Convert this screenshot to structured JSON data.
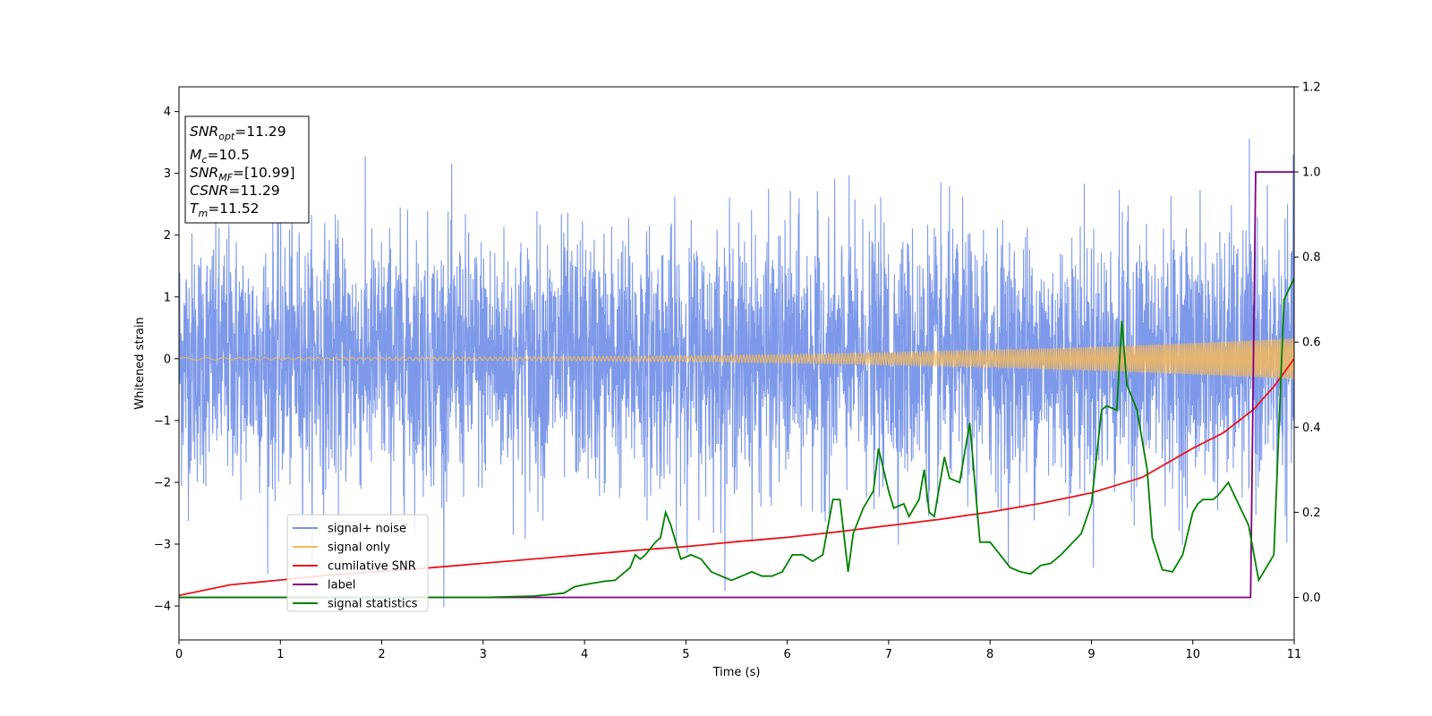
{
  "chart_data": {
    "type": "line",
    "title": "",
    "xlabel": "Time (s)",
    "ylabel": "Whitened strain",
    "xlim": [
      0,
      11
    ],
    "ylim": [
      -4.55,
      4.4
    ],
    "y2lim": [
      -0.1,
      1.2
    ],
    "xticks": [
      "0",
      "1",
      "2",
      "3",
      "4",
      "5",
      "6",
      "7",
      "8",
      "9",
      "10",
      "11"
    ],
    "yticks": [
      "4",
      "3",
      "2",
      "1",
      "0",
      "−1",
      "−2",
      "−3",
      "−4"
    ],
    "y2ticks": [
      "1.2",
      "1.0",
      "0.8",
      "0.6",
      "0.4",
      "0.2",
      "0.0"
    ],
    "grid": false,
    "legend_position": "lower-left",
    "annotation": {
      "snr_opt": {
        "base": "SNR",
        "sub": "opt",
        "value": "=11.29"
      },
      "mc": {
        "base": "M",
        "sub": "c",
        "value": "=10.5"
      },
      "snr_mf": {
        "base": "SNR",
        "sub": "MF",
        "value": "=[10.99]"
      },
      "csnr": {
        "base": "CSNR",
        "sub": "",
        "value": "=11.29"
      },
      "tm": {
        "base": "T",
        "sub": "m",
        "value": "=11.52"
      }
    },
    "series": [
      {
        "name": "signal+ noise",
        "color": "#7794e8",
        "axis": "left",
        "kind": "noise",
        "sample_rate_hz": 400,
        "std": 1.0,
        "min": -4.15,
        "max": 4.0
      },
      {
        "name": "signal only",
        "color": "#f5b95c",
        "axis": "left",
        "kind": "chirp",
        "amplitude_start": 0.02,
        "amplitude_end": 0.33,
        "frequency_start_hz": 4,
        "frequency_end_hz": 60
      },
      {
        "name": "cumilative SNR",
        "color": "#e8141c",
        "axis": "left",
        "x": [
          0,
          0.5,
          1,
          1.5,
          2,
          2.5,
          3,
          3.5,
          4,
          4.5,
          5,
          5.5,
          6,
          6.5,
          7,
          7.5,
          8,
          8.5,
          9,
          9.5,
          10,
          10.3,
          10.6,
          10.8,
          11
        ],
        "y": [
          -3.83,
          -3.66,
          -3.58,
          -3.5,
          -3.44,
          -3.38,
          -3.31,
          -3.24,
          -3.17,
          -3.1,
          -3.04,
          -2.96,
          -2.89,
          -2.8,
          -2.7,
          -2.6,
          -2.48,
          -2.34,
          -2.17,
          -1.92,
          -1.45,
          -1.2,
          -0.82,
          -0.45,
          0.0
        ]
      },
      {
        "name": "label",
        "color": "#800080",
        "axis": "right",
        "x": [
          0,
          10.57,
          10.62,
          11
        ],
        "y": [
          0.0,
          0.0,
          1.0,
          1.0
        ]
      },
      {
        "name": "signal statistics",
        "color": "#008000",
        "axis": "right",
        "x": [
          0,
          3.0,
          3.5,
          3.8,
          3.9,
          4.0,
          4.2,
          4.3,
          4.45,
          4.5,
          4.55,
          4.6,
          4.7,
          4.75,
          4.8,
          4.85,
          4.95,
          5.05,
          5.15,
          5.25,
          5.35,
          5.45,
          5.55,
          5.65,
          5.75,
          5.85,
          5.95,
          6.05,
          6.15,
          6.25,
          6.35,
          6.45,
          6.52,
          6.6,
          6.65,
          6.75,
          6.85,
          6.9,
          7.0,
          7.05,
          7.15,
          7.2,
          7.3,
          7.35,
          7.4,
          7.45,
          7.55,
          7.6,
          7.7,
          7.8,
          7.9,
          8.0,
          8.1,
          8.2,
          8.3,
          8.4,
          8.5,
          8.6,
          8.7,
          8.8,
          8.9,
          9.0,
          9.1,
          9.15,
          9.25,
          9.3,
          9.35,
          9.45,
          9.55,
          9.6,
          9.7,
          9.8,
          9.9,
          10.0,
          10.05,
          10.1,
          10.2,
          10.25,
          10.35,
          10.45,
          10.55,
          10.65,
          10.8,
          10.9,
          11.0
        ],
        "y": [
          0.0,
          0.0,
          0.003,
          0.01,
          0.025,
          0.03,
          0.038,
          0.04,
          0.07,
          0.1,
          0.09,
          0.1,
          0.13,
          0.14,
          0.2,
          0.17,
          0.09,
          0.1,
          0.09,
          0.06,
          0.05,
          0.04,
          0.05,
          0.06,
          0.05,
          0.05,
          0.06,
          0.1,
          0.1,
          0.085,
          0.1,
          0.23,
          0.23,
          0.06,
          0.15,
          0.21,
          0.25,
          0.35,
          0.25,
          0.21,
          0.22,
          0.19,
          0.23,
          0.3,
          0.2,
          0.19,
          0.33,
          0.28,
          0.27,
          0.41,
          0.13,
          0.13,
          0.1,
          0.07,
          0.06,
          0.055,
          0.075,
          0.08,
          0.1,
          0.125,
          0.15,
          0.22,
          0.44,
          0.45,
          0.44,
          0.65,
          0.5,
          0.44,
          0.3,
          0.14,
          0.065,
          0.06,
          0.1,
          0.2,
          0.22,
          0.23,
          0.23,
          0.24,
          0.27,
          0.22,
          0.17,
          0.04,
          0.1,
          0.7,
          0.75
        ]
      }
    ]
  }
}
